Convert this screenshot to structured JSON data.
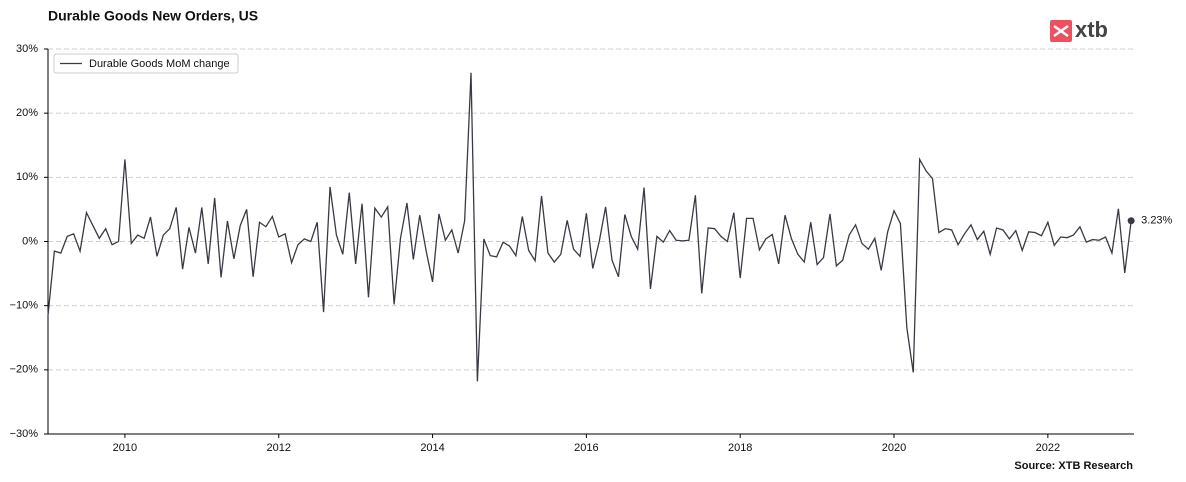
{
  "chart_data": {
    "type": "line",
    "title": "Durable Goods New Orders, US",
    "source": "Source: XTB Research",
    "logo": "xtb",
    "x": [
      2009,
      2009.083,
      2009.167,
      2009.25,
      2009.333,
      2009.417,
      2009.5,
      2009.583,
      2009.667,
      2009.75,
      2009.833,
      2009.917,
      2010,
      2010.083,
      2010.167,
      2010.25,
      2010.333,
      2010.417,
      2010.5,
      2010.583,
      2010.667,
      2010.75,
      2010.833,
      2010.917,
      2011,
      2011.083,
      2011.167,
      2011.25,
      2011.333,
      2011.417,
      2011.5,
      2011.583,
      2011.667,
      2011.75,
      2011.833,
      2011.917,
      2012,
      2012.083,
      2012.167,
      2012.25,
      2012.333,
      2012.417,
      2012.5,
      2012.583,
      2012.667,
      2012.75,
      2012.833,
      2012.917,
      2013,
      2013.083,
      2013.167,
      2013.25,
      2013.333,
      2013.417,
      2013.5,
      2013.583,
      2013.667,
      2013.75,
      2013.833,
      2013.917,
      2014,
      2014.083,
      2014.167,
      2014.25,
      2014.333,
      2014.417,
      2014.5,
      2014.583,
      2014.667,
      2014.75,
      2014.833,
      2014.917,
      2015,
      2015.083,
      2015.167,
      2015.25,
      2015.333,
      2015.417,
      2015.5,
      2015.583,
      2015.667,
      2015.75,
      2015.833,
      2015.917,
      2016,
      2016.083,
      2016.167,
      2016.25,
      2016.333,
      2016.417,
      2016.5,
      2016.583,
      2016.667,
      2016.75,
      2016.833,
      2016.917,
      2017,
      2017.083,
      2017.167,
      2017.25,
      2017.333,
      2017.417,
      2017.5,
      2017.583,
      2017.667,
      2017.75,
      2017.833,
      2017.917,
      2018,
      2018.083,
      2018.167,
      2018.25,
      2018.333,
      2018.417,
      2018.5,
      2018.583,
      2018.667,
      2018.75,
      2018.833,
      2018.917,
      2019,
      2019.083,
      2019.167,
      2019.25,
      2019.333,
      2019.417,
      2019.5,
      2019.583,
      2019.667,
      2019.75,
      2019.833,
      2019.917,
      2020,
      2020.083,
      2020.167,
      2020.25,
      2020.333,
      2020.417,
      2020.5,
      2020.583,
      2020.667,
      2020.75,
      2020.833,
      2020.917,
      2021,
      2021.083,
      2021.167,
      2021.25,
      2021.333,
      2021.417,
      2021.5,
      2021.583,
      2021.667,
      2021.75,
      2021.833,
      2021.917,
      2022,
      2022.083,
      2022.167,
      2022.25,
      2022.333,
      2022.417,
      2022.5,
      2022.583,
      2022.667,
      2022.75,
      2022.833,
      2022.917,
      2023,
      2023.083
    ],
    "series": [
      {
        "name": "Durable Goods MoM change",
        "color": "#3a3a44",
        "values": [
          -11.5,
          -1.5,
          -1.8,
          0.8,
          1.2,
          -1.5,
          4.5,
          2.5,
          0.5,
          2.0,
          -0.5,
          0.0,
          12.8,
          -0.3,
          1.0,
          0.5,
          3.8,
          -2.3,
          1.0,
          2.0,
          5.3,
          -4.3,
          2.2,
          -1.8,
          5.3,
          -3.5,
          6.8,
          -5.6,
          3.2,
          -2.7,
          2.5,
          5.0,
          -5.5,
          3.0,
          2.3,
          3.9,
          0.7,
          1.2,
          -3.3,
          -0.5,
          0.4,
          0.0,
          3.0,
          -11.0,
          8.5,
          1.0,
          -2.0,
          7.6,
          -3.5,
          5.9,
          -8.7,
          5.2,
          3.8,
          5.4,
          -9.8,
          0.5,
          6.0,
          -2.8,
          4.1,
          -1.5,
          -6.3,
          4.3,
          0.2,
          1.8,
          -1.8,
          3.2,
          26.3,
          -21.8,
          0.4,
          -2.2,
          -2.4,
          -0.1,
          -0.7,
          -2.2,
          3.9,
          -1.4,
          -3.0,
          7.1,
          -1.8,
          -3.2,
          -2.0,
          3.3,
          -1.2,
          -2.3,
          4.4,
          -4.2,
          0.0,
          5.4,
          -2.9,
          -5.5,
          4.2,
          0.8,
          -1.2,
          8.4,
          -7.4,
          0.8,
          -0.1,
          1.7,
          0.2,
          0.1,
          0.2,
          7.2,
          -8.1,
          2.1,
          2.0,
          0.8,
          0.0,
          4.5,
          -5.7,
          3.6,
          3.6,
          -1.3,
          0.4,
          1.1,
          -3.5,
          4.1,
          0.4,
          -2.0,
          -3.2,
          3.0,
          -3.6,
          -2.5,
          4.3,
          -3.8,
          -2.9,
          1.0,
          2.6,
          -0.3,
          -1.2,
          0.5,
          -4.5,
          1.5,
          4.8,
          2.8,
          -13.5,
          -20.4,
          12.8,
          11.0,
          9.8,
          1.4,
          2.0,
          1.8,
          -0.5,
          1.2,
          2.6,
          0.3,
          1.6,
          -2.0,
          2.1,
          1.8,
          0.4,
          1.7,
          -1.4,
          1.5,
          1.4,
          0.9,
          3.0,
          -0.6,
          0.7,
          0.6,
          1.0,
          2.3,
          -0.1,
          0.3,
          0.2,
          0.7,
          -1.8,
          5.1,
          -4.9,
          3.23
        ]
      }
    ],
    "last_value_label": "3.23%",
    "xlim": [
      2009,
      2023.12
    ],
    "xticks": [
      2010,
      2012,
      2014,
      2016,
      2018,
      2020,
      2022
    ],
    "ylim": [
      -30,
      30
    ],
    "yticks": [
      {
        "value": -30,
        "label": "−30%"
      },
      {
        "value": -20,
        "label": "−20%"
      },
      {
        "value": -10,
        "label": "−10%"
      },
      {
        "value": 0,
        "label": "0%"
      },
      {
        "value": 10,
        "label": "10%"
      },
      {
        "value": 20,
        "label": "20%"
      },
      {
        "value": 30,
        "label": "30%"
      }
    ],
    "grid": true,
    "legend": "upper left"
  }
}
